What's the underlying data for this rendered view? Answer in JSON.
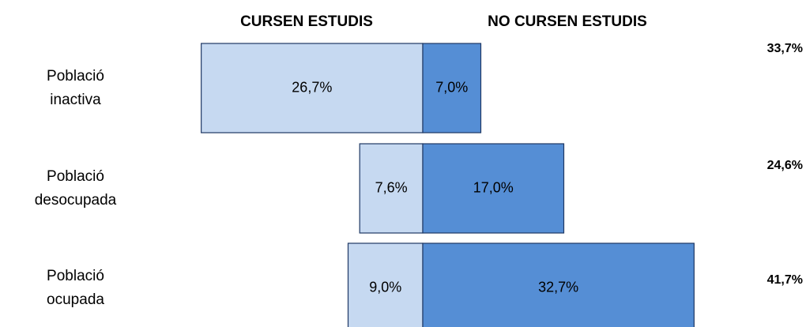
{
  "chart_data": {
    "type": "diverging-bar",
    "categories": [
      "Població inactiva",
      "Població desocupada",
      "Població ocupada"
    ],
    "series": [
      {
        "name": "CURSEN ESTUDIS",
        "color": "#c6d9f1",
        "values": [
          26.7,
          7.6,
          9.0
        ],
        "value_labels": [
          "26,7%",
          "7,6%",
          "9,0%"
        ]
      },
      {
        "name": "NO CURSEN ESTUDIS",
        "color": "#558ed5",
        "values": [
          7.0,
          17.0,
          32.7
        ],
        "value_labels": [
          "7,0%",
          "17,0%",
          "32,7%"
        ]
      }
    ],
    "totals": [
      33.7,
      24.6,
      41.7
    ],
    "total_labels": [
      "33,7%",
      "24,6%",
      "41,7%"
    ]
  }
}
